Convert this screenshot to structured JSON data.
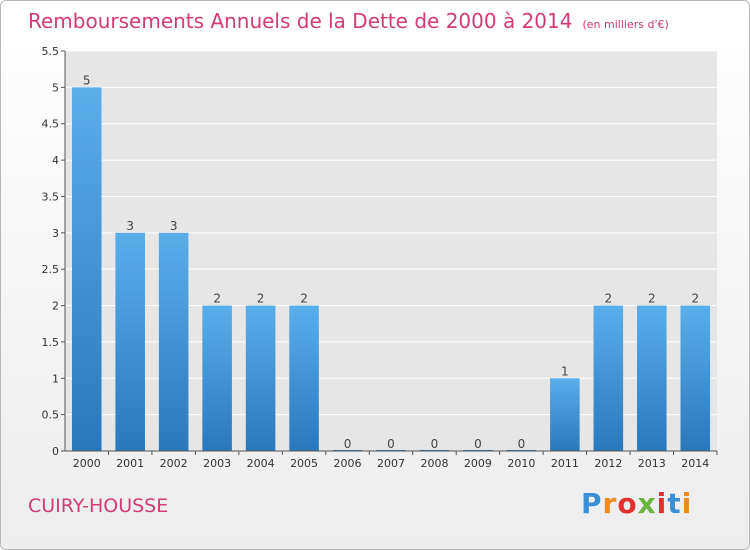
{
  "page": {
    "title": "Remboursements Annuels de la Dette de 2000 à 2014",
    "unit_note": "(en milliers d'€)",
    "commune": "CUIRY-HOUSSE",
    "logo": {
      "letters": [
        "P",
        "r",
        "o",
        "x",
        "i",
        "t",
        "i"
      ],
      "colors": [
        "#3a8fd6",
        "#f08a1c",
        "#e2312e",
        "#6cb33f",
        "#e2312e",
        "#3a8fd6",
        "#f08a1c"
      ]
    }
  },
  "chart_data": {
    "type": "bar",
    "title": "Remboursements Annuels de la Dette de 2000 à 2014",
    "categories": [
      "2000",
      "2001",
      "2002",
      "2003",
      "2004",
      "2005",
      "2006",
      "2007",
      "2008",
      "2009",
      "2010",
      "2011",
      "2012",
      "2013",
      "2014"
    ],
    "values": [
      5,
      3,
      3,
      2,
      2,
      2,
      0,
      0,
      0,
      0,
      0,
      1,
      2,
      2,
      2
    ],
    "data_labels": [
      "5",
      "3",
      "3",
      "2",
      "2",
      "2",
      "0",
      "0",
      "0",
      "0",
      "0",
      "1",
      "2",
      "2",
      "2"
    ],
    "ylim": [
      0,
      5.5
    ],
    "yticks": [
      0,
      0.5,
      1,
      1.5,
      2,
      2.5,
      3,
      3.5,
      4,
      4.5,
      5,
      5.5
    ],
    "ytick_labels": [
      "0",
      "0.5",
      "1",
      "1.5",
      "2",
      "2.5",
      "3",
      "3.5",
      "4",
      "4.5",
      "5",
      "5.5"
    ],
    "grid": true,
    "bar_color_top": "#5aaeea",
    "bar_color_bottom": "#2a78bc",
    "plot_background": "#e6e6e6"
  }
}
